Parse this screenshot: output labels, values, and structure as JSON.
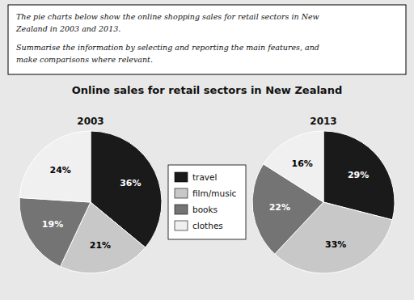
{
  "chart_data": {
    "type": "pie",
    "title": "Online sales for retail sectors in New Zealand",
    "annotations": [
      "The pie charts below show the online shopping sales for retail sectors in New",
      "Zealand in 2003 and 2013.",
      "Summarise the information by selecting and reporting the main features, and",
      "make comparisons where relevant."
    ],
    "categories": [
      "travel",
      "film/music",
      "books",
      "clothes"
    ],
    "colors": [
      "#1a1a1a",
      "#c8c8c8",
      "#747474",
      "#f0f0f0"
    ],
    "series": [
      {
        "name": "2003",
        "values": [
          36,
          21,
          19,
          24
        ],
        "value_labels": [
          "36%",
          "21%",
          "19%",
          "24%"
        ]
      },
      {
        "name": "2013",
        "values": [
          29,
          33,
          22,
          16
        ],
        "value_labels": [
          "29%",
          "33%",
          "22%",
          "16%"
        ]
      }
    ],
    "data_labels": true,
    "legend": "center"
  }
}
